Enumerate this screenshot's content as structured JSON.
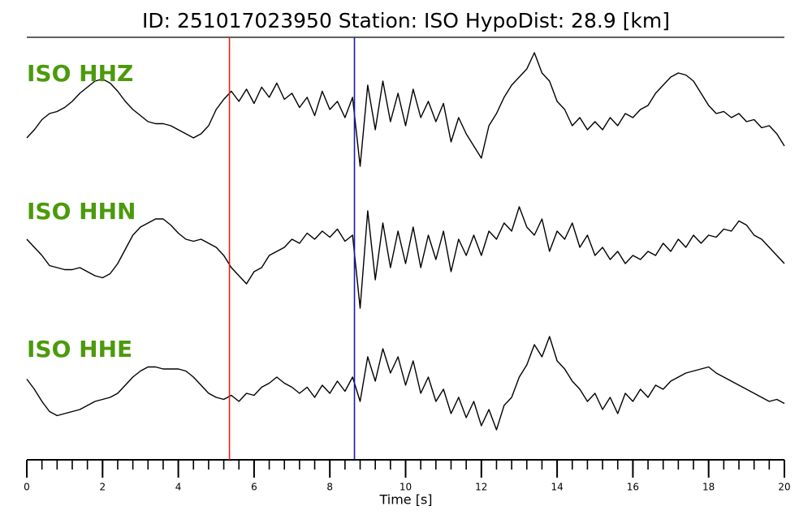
{
  "chart_data": {
    "type": "line",
    "title": "ID: 251017023950   Station: ISO   HypoDist:    28.9 [km]",
    "xlabel": "Time [s]",
    "xlim": [
      0,
      20
    ],
    "xticks": [
      0,
      2,
      4,
      6,
      8,
      10,
      12,
      14,
      16,
      18,
      20
    ],
    "xminorticks": [
      0,
      0.4,
      0.8,
      1.2,
      1.6,
      2,
      2.4,
      2.8,
      3.2,
      3.6,
      4,
      4.4,
      4.8,
      5.2,
      5.6,
      6,
      6.4,
      6.8,
      7.2,
      7.6,
      8,
      8.4,
      8.8,
      9.2,
      9.6,
      10,
      10.4,
      10.8,
      11.2,
      11.6,
      12,
      12.4,
      12.8,
      13.2,
      13.6,
      14,
      14.4,
      14.8,
      15.2,
      15.6,
      16,
      16.4,
      16.8,
      17.2,
      17.6,
      18,
      18.4,
      18.8,
      19.2,
      19.6,
      20
    ],
    "ylim": [
      -1.7,
      1.7
    ],
    "label_color": "#4c9a0c",
    "picks": [
      {
        "time": 5.35,
        "color": "#e8201a"
      },
      {
        "time": 8.65,
        "color": "#1a1aa8"
      }
    ],
    "x": [
      0,
      0.2,
      0.4,
      0.6,
      0.8,
      1,
      1.2,
      1.4,
      1.6,
      1.8,
      2,
      2.2,
      2.4,
      2.6,
      2.8,
      3,
      3.2,
      3.4,
      3.6,
      3.8,
      4,
      4.2,
      4.4,
      4.6,
      4.8,
      5,
      5.2,
      5.4,
      5.6,
      5.8,
      6,
      6.2,
      6.4,
      6.6,
      6.8,
      7,
      7.2,
      7.4,
      7.6,
      7.8,
      8,
      8.2,
      8.4,
      8.6,
      8.8,
      9,
      9.2,
      9.4,
      9.6,
      9.8,
      10,
      10.2,
      10.4,
      10.6,
      10.8,
      11,
      11.2,
      11.4,
      11.6,
      11.8,
      12,
      12.2,
      12.4,
      12.6,
      12.8,
      13,
      13.2,
      13.4,
      13.6,
      13.8,
      14,
      14.2,
      14.4,
      14.6,
      14.8,
      15,
      15.2,
      15.4,
      15.6,
      15.8,
      16,
      16.2,
      16.4,
      16.6,
      16.8,
      17,
      17.2,
      17.4,
      17.6,
      17.8,
      18,
      18.2,
      18.4,
      18.6,
      18.8,
      19,
      19.2,
      19.4,
      19.6,
      19.8,
      20
    ],
    "series": [
      {
        "name": "ISO HHZ",
        "color": "#000000",
        "values": [
          -0.8,
          -0.6,
          -0.35,
          -0.2,
          -0.15,
          -0.05,
          0.1,
          0.3,
          0.45,
          0.6,
          0.65,
          0.55,
          0.35,
          0.1,
          -0.1,
          -0.25,
          -0.4,
          -0.45,
          -0.45,
          -0.5,
          -0.6,
          -0.7,
          -0.8,
          -0.7,
          -0.5,
          -0.1,
          0.15,
          0.35,
          0.1,
          0.4,
          0.05,
          0.45,
          0.2,
          0.55,
          0.15,
          0.3,
          -0.05,
          0.2,
          -0.25,
          0.35,
          -0.1,
          0.1,
          -0.3,
          0.2,
          -1.5,
          0.5,
          -0.6,
          0.6,
          -0.4,
          0.3,
          -0.5,
          0.4,
          -0.3,
          0.1,
          -0.4,
          0.05,
          -0.9,
          -0.3,
          -0.7,
          -1.0,
          -1.3,
          -0.5,
          -0.2,
          0.2,
          0.5,
          0.7,
          0.9,
          1.3,
          0.8,
          0.6,
          0.1,
          -0.1,
          -0.5,
          -0.3,
          -0.6,
          -0.4,
          -0.6,
          -0.3,
          -0.5,
          -0.2,
          -0.3,
          -0.1,
          0.0,
          0.3,
          0.5,
          0.7,
          0.8,
          0.75,
          0.6,
          0.3,
          0.0,
          -0.2,
          -0.15,
          -0.3,
          -0.2,
          -0.4,
          -0.35,
          -0.55,
          -0.5,
          -0.7,
          -1.0
        ]
      },
      {
        "name": "ISO HHN",
        "color": "#000000",
        "values": [
          0.1,
          -0.1,
          -0.3,
          -0.55,
          -0.6,
          -0.65,
          -0.65,
          -0.6,
          -0.7,
          -0.8,
          -0.85,
          -0.75,
          -0.5,
          -0.15,
          0.2,
          0.4,
          0.5,
          0.6,
          0.6,
          0.45,
          0.25,
          0.1,
          0.05,
          0.1,
          0.0,
          -0.1,
          -0.3,
          -0.6,
          -0.8,
          -1.0,
          -0.7,
          -0.6,
          -0.3,
          -0.2,
          -0.1,
          0.1,
          0.0,
          0.25,
          0.1,
          0.3,
          0.15,
          0.35,
          0.05,
          0.2,
          -1.6,
          0.8,
          -0.9,
          0.5,
          -0.6,
          0.3,
          -0.5,
          0.4,
          -0.6,
          0.2,
          -0.4,
          0.3,
          -0.7,
          0.1,
          -0.3,
          0.2,
          -0.3,
          0.3,
          0.1,
          0.5,
          0.3,
          0.9,
          0.4,
          0.2,
          0.6,
          -0.2,
          0.3,
          0.1,
          0.5,
          -0.1,
          0.2,
          -0.3,
          -0.1,
          -0.4,
          -0.2,
          -0.5,
          -0.3,
          -0.4,
          -0.2,
          -0.3,
          0.0,
          -0.2,
          0.1,
          -0.1,
          0.2,
          0.0,
          0.2,
          0.15,
          0.35,
          0.3,
          0.55,
          0.45,
          0.2,
          0.1,
          -0.1,
          -0.3,
          -0.5
        ]
      },
      {
        "name": "ISO HHE",
        "color": "#000000",
        "values": [
          0.05,
          -0.2,
          -0.5,
          -0.75,
          -0.85,
          -0.8,
          -0.75,
          -0.7,
          -0.6,
          -0.5,
          -0.45,
          -0.4,
          -0.3,
          -0.1,
          0.1,
          0.25,
          0.35,
          0.35,
          0.3,
          0.3,
          0.3,
          0.25,
          0.1,
          -0.1,
          -0.3,
          -0.4,
          -0.45,
          -0.35,
          -0.5,
          -0.3,
          -0.35,
          -0.15,
          -0.05,
          0.1,
          -0.05,
          -0.15,
          -0.3,
          -0.15,
          -0.4,
          -0.1,
          -0.3,
          0.0,
          -0.25,
          0.1,
          -0.5,
          0.6,
          0.0,
          0.8,
          0.2,
          0.6,
          -0.1,
          0.5,
          -0.3,
          0.1,
          -0.5,
          -0.2,
          -0.8,
          -0.4,
          -0.9,
          -0.5,
          -1.1,
          -0.7,
          -1.2,
          -0.6,
          -0.4,
          0.1,
          0.4,
          0.9,
          0.6,
          1.1,
          0.5,
          0.3,
          0.0,
          -0.2,
          -0.5,
          -0.3,
          -0.7,
          -0.4,
          -0.8,
          -0.3,
          -0.5,
          -0.2,
          -0.4,
          -0.1,
          -0.2,
          0.0,
          0.1,
          0.2,
          0.25,
          0.3,
          0.35,
          0.2,
          0.1,
          0.0,
          -0.1,
          -0.2,
          -0.3,
          -0.4,
          -0.5,
          -0.45,
          -0.55
        ]
      }
    ]
  }
}
